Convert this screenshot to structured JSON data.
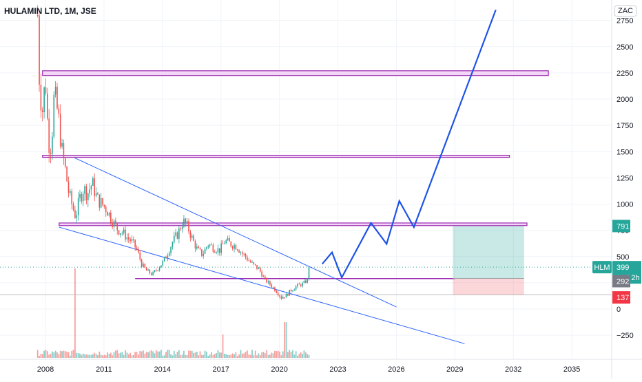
{
  "header": {
    "title": "HULAMIN LTD, 1M, JSE",
    "currency": "ZAC"
  },
  "colors": {
    "up": "#26a69a",
    "down": "#ef5350",
    "wick": "#9e9e9e",
    "purple": "#9c27b0",
    "purple_fill": "#f3d7f7",
    "trendline": "#2962ff",
    "projection": "#1e53e5",
    "target_zone": "#26a69a",
    "stop_zone": "#f23645",
    "grid": "#f0f3fa"
  },
  "chart_data": {
    "type": "candlestick",
    "symbol": "HULAMIN LTD",
    "interval": "1M",
    "exchange": "JSE",
    "x_ticks": [
      "2008",
      "2011",
      "2014",
      "2017",
      "2020",
      "2023",
      "2026",
      "2029",
      "2032",
      "2035"
    ],
    "y_ticks": [
      "2750",
      "2500",
      "2250",
      "2000",
      "1750",
      "1500",
      "1250",
      "1000",
      "750",
      "500",
      "250",
      "0",
      "−250"
    ],
    "y_tick_values": [
      2750,
      2500,
      2250,
      2000,
      1750,
      1500,
      1250,
      1000,
      750,
      500,
      250,
      0,
      -250
    ],
    "ylim": [
      -420,
      2850
    ],
    "xlim": [
      2007.5,
      2037.5
    ],
    "price_anchors": [
      [
        2007.6,
        2800
      ],
      [
        2007.7,
        2100
      ],
      [
        2007.85,
        1900
      ],
      [
        2008.0,
        2200
      ],
      [
        2008.15,
        1600
      ],
      [
        2008.3,
        1550
      ],
      [
        2008.45,
        2050
      ],
      [
        2008.65,
        1850
      ],
      [
        2008.85,
        1500
      ],
      [
        2009.0,
        1350
      ],
      [
        2009.2,
        1100
      ],
      [
        2009.35,
        1000
      ],
      [
        2009.55,
        880
      ],
      [
        2009.75,
        1050
      ],
      [
        2009.95,
        1150
      ],
      [
        2010.15,
        1100
      ],
      [
        2010.4,
        1200
      ],
      [
        2010.65,
        1050
      ],
      [
        2010.9,
        1000
      ],
      [
        2011.15,
        950
      ],
      [
        2011.4,
        850
      ],
      [
        2011.7,
        760
      ],
      [
        2011.95,
        730
      ],
      [
        2012.2,
        680
      ],
      [
        2012.45,
        640
      ],
      [
        2012.7,
        560
      ],
      [
        2012.95,
        420
      ],
      [
        2013.2,
        360
      ],
      [
        2013.5,
        330
      ],
      [
        2013.8,
        400
      ],
      [
        2014.05,
        450
      ],
      [
        2014.3,
        550
      ],
      [
        2014.55,
        650
      ],
      [
        2014.8,
        720
      ],
      [
        2015.05,
        840
      ],
      [
        2015.3,
        780
      ],
      [
        2015.55,
        660
      ],
      [
        2015.8,
        560
      ],
      [
        2016.05,
        520
      ],
      [
        2016.35,
        620
      ],
      [
        2016.65,
        580
      ],
      [
        2016.95,
        560
      ],
      [
        2017.2,
        650
      ],
      [
        2017.5,
        620
      ],
      [
        2017.8,
        600
      ],
      [
        2018.05,
        540
      ],
      [
        2018.35,
        480
      ],
      [
        2018.65,
        420
      ],
      [
        2018.95,
        380
      ],
      [
        2019.25,
        280
      ],
      [
        2019.55,
        230
      ],
      [
        2019.85,
        170
      ],
      [
        2020.1,
        110
      ],
      [
        2020.35,
        130
      ],
      [
        2020.6,
        180
      ],
      [
        2020.9,
        220
      ],
      [
        2021.2,
        240
      ],
      [
        2021.45,
        280
      ],
      [
        2021.55,
        399
      ]
    ],
    "last_price": 399,
    "last_price_label": "HLM",
    "countdown": "13d 2h",
    "horizontal_levels": [
      {
        "kind": "zone",
        "y_top": 2270,
        "y_bottom": 2225,
        "x_start": 2007.85,
        "x_end": 2033.8
      },
      {
        "kind": "zone",
        "y_top": 1465,
        "y_bottom": 1445,
        "x_start": 2007.85,
        "x_end": 2031.8
      },
      {
        "kind": "zone",
        "y_top": 820,
        "y_bottom": 795,
        "x_start": 2008.7,
        "x_end": 2032.7
      },
      {
        "kind": "line",
        "y": 290,
        "x_start": 2012.6,
        "x_end": 2029.0
      }
    ],
    "trend_lines": [
      {
        "from": [
          2009.5,
          1440
        ],
        "to": [
          2026.0,
          20
        ]
      },
      {
        "from": [
          2008.7,
          780
        ],
        "to": [
          2029.5,
          -330
        ]
      }
    ],
    "projection_path": [
      [
        2022.2,
        430
      ],
      [
        2022.7,
        540
      ],
      [
        2023.2,
        300
      ],
      [
        2024.7,
        820
      ],
      [
        2025.5,
        620
      ],
      [
        2026.15,
        1030
      ],
      [
        2026.9,
        780
      ],
      [
        2031.1,
        2850
      ]
    ],
    "position_tool": {
      "x_start": 2028.9,
      "x_end": 2032.55,
      "target": 791,
      "entry": 292,
      "stop": 137,
      "target_label": "791",
      "entry_label": "292",
      "stop_label": "137"
    },
    "reference_lines": [
      {
        "y": 399,
        "style": "dotted",
        "color": "#26a69a"
      },
      {
        "y": 137,
        "style": "solid",
        "color": "#bdbdbd"
      }
    ]
  }
}
